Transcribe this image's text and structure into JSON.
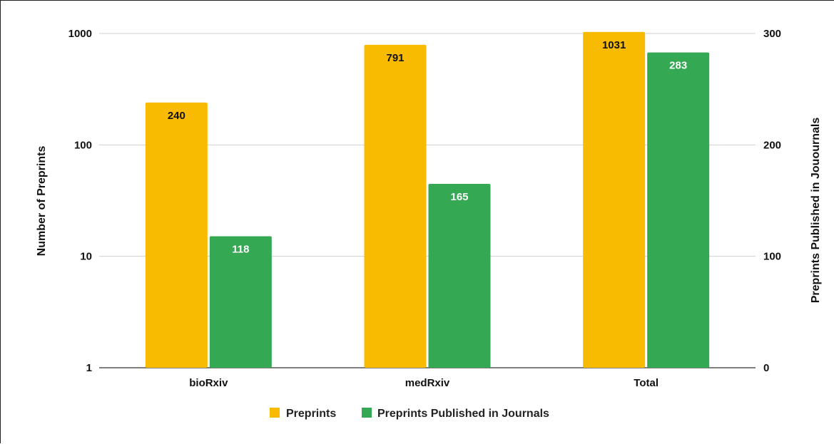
{
  "chart_data": {
    "type": "bar",
    "categories": [
      "bioRxiv",
      "medRxiv",
      "Total"
    ],
    "series": [
      {
        "name": "Preprints",
        "axis": "left",
        "values": [
          240,
          791,
          1031
        ],
        "color": "#F9BB02"
      },
      {
        "name": "Preprints Published in Journals",
        "axis": "right",
        "values": [
          118,
          165,
          283
        ],
        "color": "#34A853"
      }
    ],
    "y_left": {
      "label": "Number of Preprints",
      "scale": "log",
      "range": [
        1,
        1000
      ],
      "ticks": [
        "1",
        "10",
        "100",
        "1000"
      ]
    },
    "y_right": {
      "label": "Preprints Published in Jouournals",
      "scale": "linear",
      "range": [
        0,
        300
      ],
      "ticks": [
        "0",
        "100",
        "200",
        "300"
      ]
    },
    "grid": true,
    "legend": "bottom"
  }
}
